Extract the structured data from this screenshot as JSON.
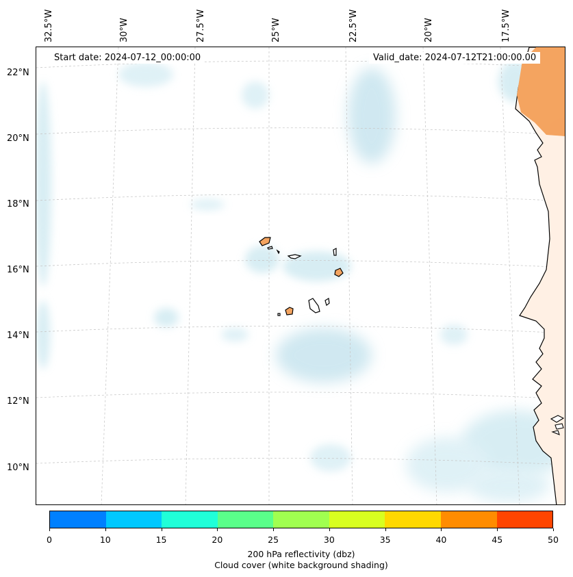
{
  "map": {
    "start_date": "Start date: 2024-07-12_00:00:00",
    "valid_date": "Valid_date: 2024-07-12T21:00:00.00",
    "lon_labels": [
      "32.5°W",
      "30°W",
      "27.5°W",
      "25°W",
      "22.5°W",
      "20°W",
      "17.5°W"
    ],
    "lat_labels": [
      "22°N",
      "20°N",
      "18°N",
      "16°N",
      "14°N",
      "12°N",
      "10°N"
    ],
    "land_color": "#f4a460",
    "cloud_color": "#add8e6",
    "coast_color": "#000000"
  },
  "colorbar": {
    "ticks": [
      "0",
      "10",
      "15",
      "20",
      "25",
      "30",
      "35",
      "40",
      "45",
      "50"
    ],
    "colors": [
      "#0080ff",
      "#00c8ff",
      "#20ffd8",
      "#5aff8a",
      "#a0ff50",
      "#d8ff20",
      "#ffd800",
      "#ff8c00",
      "#ff4500"
    ],
    "label_line1": "200 hPa reflectivity (dbz)",
    "label_line2": "Cloud cover (white background shading)"
  }
}
